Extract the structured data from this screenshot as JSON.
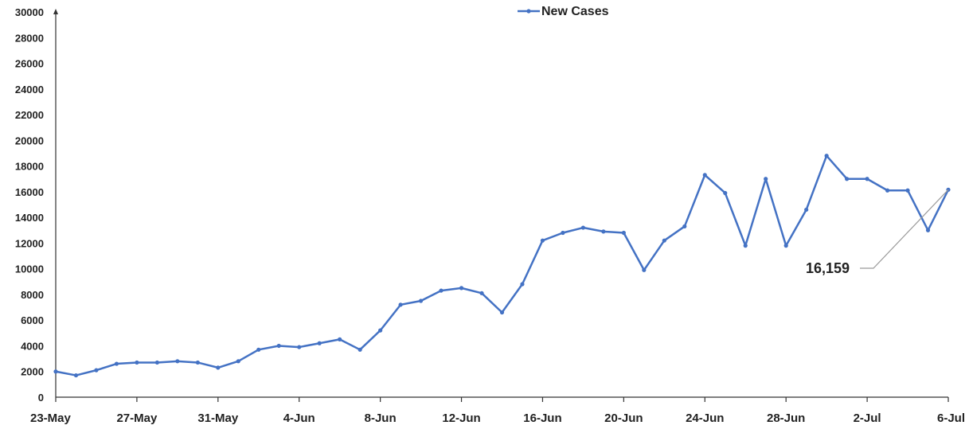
{
  "chart_data": {
    "type": "line",
    "title": "",
    "xlabel": "",
    "ylabel": "",
    "ylim": [
      0,
      30000
    ],
    "y_ticks": [
      0,
      2000,
      4000,
      6000,
      8000,
      10000,
      12000,
      14000,
      16000,
      18000,
      20000,
      22000,
      24000,
      26000,
      28000,
      30000
    ],
    "x_tick_labels": [
      "23-May",
      "27-May",
      "31-May",
      "4-Jun",
      "8-Jun",
      "12-Jun",
      "16-Jun",
      "20-Jun",
      "24-Jun",
      "28-Jun",
      "2-Jul",
      "6-Jul"
    ],
    "legend": {
      "position": "top-center",
      "entries": [
        "New Cases"
      ]
    },
    "grid": false,
    "colors": {
      "line": "#4472C4",
      "axis": "#333333",
      "annotation_line": "#9a9a9a"
    },
    "series": [
      {
        "name": "New Cases",
        "x": [
          "23-May",
          "24-May",
          "25-May",
          "26-May",
          "27-May",
          "28-May",
          "29-May",
          "30-May",
          "31-May",
          "1-Jun",
          "2-Jun",
          "3-Jun",
          "4-Jun",
          "5-Jun",
          "6-Jun",
          "7-Jun",
          "8-Jun",
          "9-Jun",
          "10-Jun",
          "11-Jun",
          "12-Jun",
          "13-Jun",
          "14-Jun",
          "15-Jun",
          "16-Jun",
          "17-Jun",
          "18-Jun",
          "19-Jun",
          "20-Jun",
          "21-Jun",
          "22-Jun",
          "23-Jun",
          "24-Jun",
          "25-Jun",
          "26-Jun",
          "27-Jun",
          "28-Jun",
          "29-Jun",
          "30-Jun",
          "1-Jul",
          "2-Jul",
          "3-Jul",
          "4-Jul",
          "5-Jul",
          "6-Jul"
        ],
        "values": [
          2000,
          1700,
          2100,
          2600,
          2700,
          2700,
          2800,
          2700,
          2300,
          2800,
          3700,
          4000,
          3900,
          4200,
          4500,
          3700,
          5200,
          7200,
          7500,
          8300,
          8500,
          8100,
          6600,
          8800,
          12200,
          12800,
          13200,
          12900,
          12800,
          9900,
          12200,
          13300,
          17300,
          15900,
          11800,
          17000,
          11800,
          14600,
          18800,
          17000,
          17000,
          16100,
          16100,
          13000,
          16159
        ]
      }
    ],
    "annotations": [
      {
        "text": "16,159",
        "x": "6-Jul",
        "y": 16159
      }
    ]
  }
}
